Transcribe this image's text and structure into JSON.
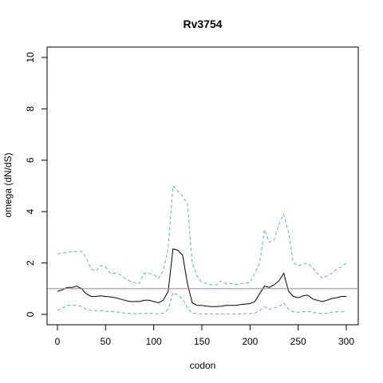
{
  "chart_data": {
    "type": "line",
    "title": "Rv3754",
    "xlabel": "codon",
    "ylabel": "omega (dN/dS)",
    "xlim": [
      0,
      300
    ],
    "ylim": [
      0,
      10
    ],
    "x_ticks": [
      0,
      50,
      100,
      150,
      200,
      250,
      300
    ],
    "y_ticks": [
      0,
      2,
      4,
      6,
      8,
      10
    ],
    "grid": false,
    "legend": "none",
    "reference_line": {
      "y": 1,
      "color": "#cc66cc"
    },
    "colors": {
      "estimate": "#000000",
      "interval": "#4db3e6"
    },
    "x": [
      0,
      5,
      10,
      15,
      20,
      25,
      30,
      35,
      40,
      45,
      50,
      55,
      60,
      65,
      70,
      75,
      80,
      85,
      90,
      95,
      100,
      105,
      110,
      115,
      120,
      125,
      130,
      135,
      140,
      145,
      150,
      155,
      160,
      165,
      170,
      175,
      180,
      185,
      190,
      195,
      200,
      205,
      210,
      215,
      220,
      225,
      230,
      235,
      240,
      245,
      250,
      255,
      260,
      265,
      270,
      275,
      280,
      285,
      290,
      295,
      300
    ],
    "series": [
      {
        "values": [
          0.9,
          0.95,
          1.05,
          1.05,
          1.1,
          1.0,
          0.8,
          0.7,
          0.7,
          0.72,
          0.7,
          0.68,
          0.65,
          0.6,
          0.55,
          0.5,
          0.5,
          0.5,
          0.55,
          0.55,
          0.5,
          0.45,
          0.55,
          0.9,
          2.55,
          2.5,
          2.3,
          1.2,
          0.45,
          0.35,
          0.35,
          0.32,
          0.3,
          0.3,
          0.32,
          0.35,
          0.35,
          0.35,
          0.38,
          0.4,
          0.42,
          0.5,
          0.8,
          1.1,
          1.05,
          1.15,
          1.3,
          1.6,
          0.9,
          0.7,
          0.65,
          0.72,
          0.75,
          0.6,
          0.55,
          0.5,
          0.55,
          0.62,
          0.65,
          0.7,
          0.7
        ]
      },
      {
        "values": [
          2.35,
          2.4,
          2.4,
          2.45,
          2.45,
          2.45,
          2.2,
          1.75,
          1.7,
          1.9,
          1.85,
          1.6,
          1.6,
          1.55,
          1.4,
          1.3,
          1.25,
          1.2,
          1.6,
          1.6,
          1.55,
          1.4,
          1.7,
          2.6,
          5.0,
          4.8,
          4.6,
          4.3,
          2.0,
          1.5,
          1.25,
          1.2,
          1.15,
          1.15,
          1.3,
          1.2,
          1.2,
          1.15,
          1.2,
          1.2,
          1.25,
          1.6,
          2.0,
          3.3,
          2.8,
          2.9,
          3.5,
          3.9,
          3.2,
          2.0,
          1.9,
          1.95,
          2.0,
          1.8,
          1.6,
          1.4,
          1.5,
          1.6,
          1.75,
          1.85,
          2.0
        ]
      },
      {
        "values": [
          0.15,
          0.25,
          0.35,
          0.35,
          0.35,
          0.3,
          0.2,
          0.15,
          0.15,
          0.15,
          0.12,
          0.12,
          0.1,
          0.08,
          0.05,
          0.04,
          0.03,
          0.03,
          0.05,
          0.05,
          0.03,
          0.02,
          0.05,
          0.2,
          0.85,
          0.75,
          0.6,
          0.25,
          0.05,
          0.03,
          0.02,
          0.02,
          0.02,
          0.02,
          0.02,
          0.02,
          0.02,
          0.02,
          0.02,
          0.03,
          0.03,
          0.05,
          0.15,
          0.3,
          0.2,
          0.25,
          0.3,
          0.45,
          0.2,
          0.1,
          0.08,
          0.1,
          0.12,
          0.08,
          0.05,
          0.04,
          0.05,
          0.08,
          0.1,
          0.1,
          0.12
        ]
      }
    ]
  }
}
